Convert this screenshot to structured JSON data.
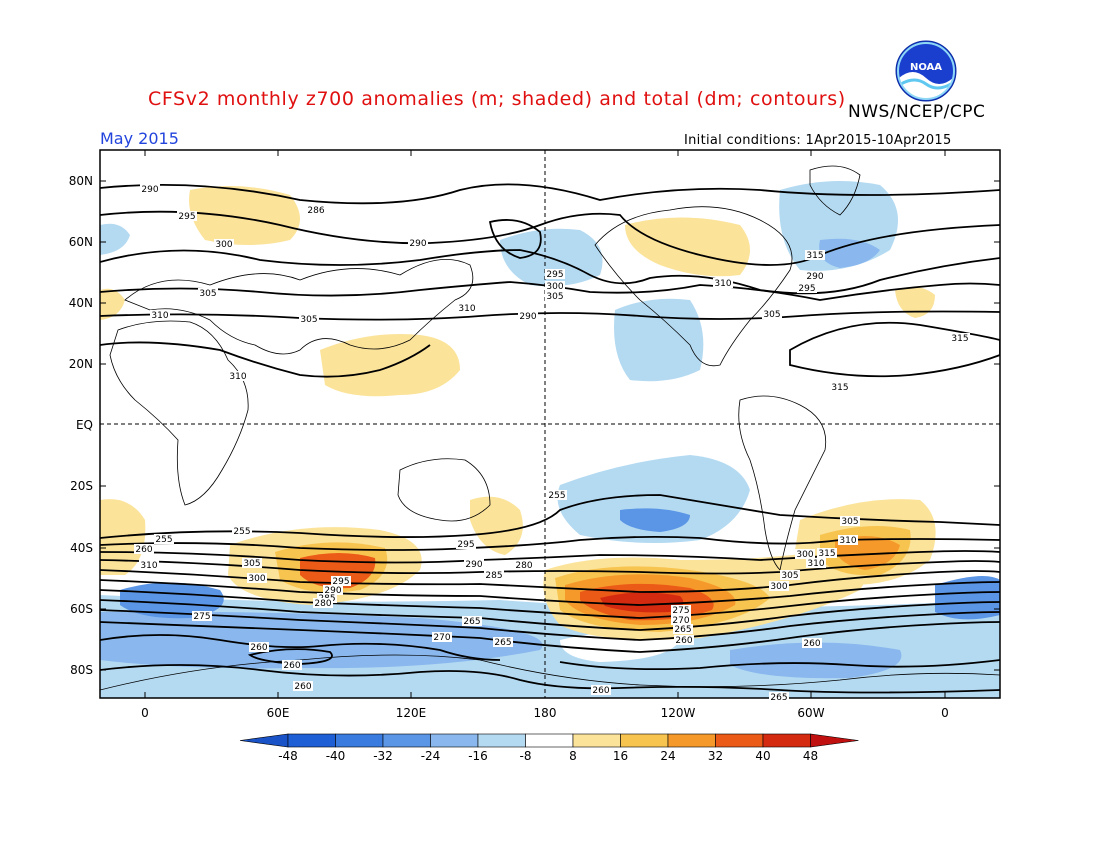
{
  "header": {
    "title": "CFSv2 monthly z700 anomalies (m; shaded) and total (dm; contours)",
    "agency": "NWS/NCEP/CPC",
    "month": "May 2015",
    "initial_conditions": "Initial conditions: 1Apr2015-10Apr2015",
    "logo_text": "NOAA"
  },
  "map": {
    "lat_labels": [
      "80N",
      "60N",
      "40N",
      "20N",
      "EQ",
      "20S",
      "40S",
      "60S",
      "80S"
    ],
    "lon_labels": [
      "0",
      "60E",
      "120E",
      "180",
      "120W",
      "60W",
      "0"
    ],
    "contour_labels": [
      "290",
      "286",
      "295",
      "300",
      "290",
      "305",
      "310",
      "305",
      "310",
      "290",
      "295",
      "300",
      "305",
      "310",
      "305",
      "310",
      "315",
      "315",
      "315",
      "290",
      "295",
      "300",
      "305",
      "310",
      "315",
      "310",
      "305",
      "300",
      "295",
      "290",
      "285",
      "280",
      "275",
      "270",
      "265",
      "260",
      "260",
      "260",
      "260",
      "265",
      "265",
      "260",
      "255",
      "255",
      "255",
      "260",
      "310",
      "305",
      "300",
      "295",
      "290",
      "285",
      "280",
      "275",
      "270",
      "265",
      "260"
    ]
  },
  "colorbar": {
    "labels": [
      "-48",
      "-40",
      "-32",
      "-24",
      "-16",
      "-8",
      "8",
      "16",
      "24",
      "32",
      "40",
      "48"
    ],
    "colors": [
      "#1f5fd6",
      "#3a7be0",
      "#5a95e6",
      "#8ab8ee",
      "#b4daf2",
      "#ffffff",
      "#fbe39a",
      "#f8c450",
      "#f59a2a",
      "#ec5a18",
      "#d42a10"
    ],
    "under_color": "#1a52c8",
    "over_color": "#c01010"
  }
}
